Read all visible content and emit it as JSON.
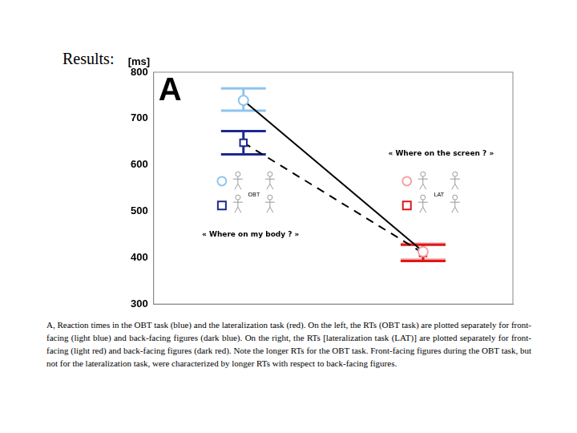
{
  "slide_title": "Results:",
  "chart_data": {
    "type": "line",
    "panel_label": "A",
    "y_label": "[ms]",
    "categories": [
      null,
      null
    ],
    "ylim": [
      300,
      800
    ],
    "yticks": [
      300,
      400,
      500,
      600,
      700,
      800
    ],
    "grid": false,
    "tick_labels": "y",
    "series": [
      {
        "colors": [
          "#8ec5ee",
          "#f4a3a3"
        ],
        "marker": "circle",
        "line_style": "solid",
        "values": [
          739,
          413
        ],
        "error_low": [
          717,
          396
        ],
        "error_high": [
          765,
          430
        ]
      },
      {
        "colors": [
          "#1c2a8c",
          "#e01818"
        ],
        "marker": "square",
        "line_style": "dashed",
        "values": [
          648,
          410
        ],
        "error_low": [
          623,
          393
        ],
        "error_high": [
          673,
          428
        ]
      }
    ],
    "annotations": [
      "« Where on the screen ? »",
      "« Where on my body ? »",
      "OBT",
      "LAT"
    ]
  },
  "caption": "A, Reaction times in the OBT task (blue) and the lateralization task (red). On the left, the RTs (OBT task) are plotted separately for front-facing (light blue) and back-facing figures (dark blue). On the right, the RTs [lateralization task (LAT)] are plotted separately for front-facing (light red) and back-facing figures (dark red). Note the longer RTs for the OBT task. Front-facing figures during the OBT task, but not for the lateralization task, were characterized by longer RTs with respect to back-facing figures."
}
